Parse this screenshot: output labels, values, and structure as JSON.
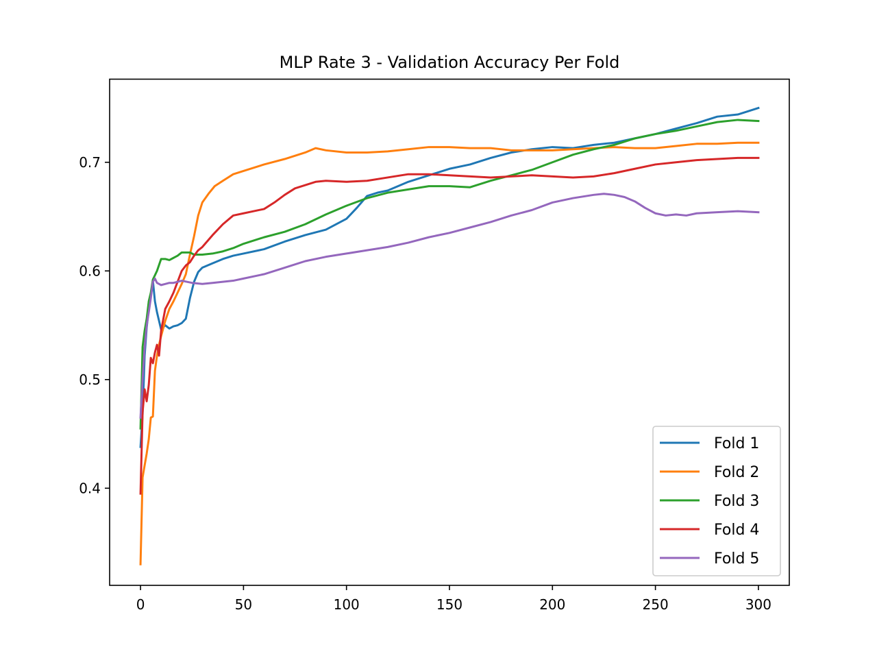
{
  "chart_data": {
    "type": "line",
    "title": "MLP Rate 3 - Validation Accuracy Per Fold",
    "xlabel": "",
    "ylabel": "",
    "xlim": [
      -15,
      315
    ],
    "ylim": [
      0.3106,
      0.7765
    ],
    "xticks": [
      0,
      50,
      100,
      150,
      200,
      250,
      300
    ],
    "yticks": [
      0.4,
      0.5,
      0.6,
      0.7
    ],
    "ytick_labels": [
      "0.4",
      "0.5",
      "0.6",
      "0.7"
    ],
    "grid": false,
    "legend_position": "bottom-right",
    "series": [
      {
        "name": "Fold 1",
        "color": "#1f77b4",
        "points": [
          [
            0,
            0.438
          ],
          [
            1,
            0.468
          ],
          [
            2,
            0.522
          ],
          [
            3,
            0.548
          ],
          [
            4,
            0.565
          ],
          [
            5,
            0.578
          ],
          [
            6,
            0.591
          ],
          [
            7,
            0.572
          ],
          [
            8,
            0.562
          ],
          [
            9,
            0.554
          ],
          [
            10,
            0.546
          ],
          [
            12,
            0.55
          ],
          [
            14,
            0.547
          ],
          [
            16,
            0.549
          ],
          [
            18,
            0.55
          ],
          [
            20,
            0.552
          ],
          [
            22,
            0.556
          ],
          [
            24,
            0.575
          ],
          [
            26,
            0.59
          ],
          [
            28,
            0.599
          ],
          [
            30,
            0.603
          ],
          [
            35,
            0.607
          ],
          [
            40,
            0.611
          ],
          [
            45,
            0.614
          ],
          [
            50,
            0.616
          ],
          [
            60,
            0.62
          ],
          [
            70,
            0.627
          ],
          [
            80,
            0.633
          ],
          [
            90,
            0.638
          ],
          [
            100,
            0.648
          ],
          [
            105,
            0.658
          ],
          [
            110,
            0.669
          ],
          [
            115,
            0.672
          ],
          [
            120,
            0.674
          ],
          [
            130,
            0.682
          ],
          [
            140,
            0.688
          ],
          [
            150,
            0.694
          ],
          [
            160,
            0.698
          ],
          [
            170,
            0.704
          ],
          [
            180,
            0.709
          ],
          [
            190,
            0.712
          ],
          [
            200,
            0.714
          ],
          [
            210,
            0.713
          ],
          [
            220,
            0.716
          ],
          [
            230,
            0.718
          ],
          [
            240,
            0.722
          ],
          [
            250,
            0.726
          ],
          [
            260,
            0.731
          ],
          [
            270,
            0.736
          ],
          [
            280,
            0.742
          ],
          [
            290,
            0.744
          ],
          [
            295,
            0.747
          ],
          [
            300,
            0.75
          ]
        ]
      },
      {
        "name": "Fold 2",
        "color": "#ff7f0e",
        "points": [
          [
            0,
            0.33
          ],
          [
            1,
            0.41
          ],
          [
            2,
            0.421
          ],
          [
            3,
            0.432
          ],
          [
            4,
            0.445
          ],
          [
            5,
            0.465
          ],
          [
            6,
            0.466
          ],
          [
            7,
            0.508
          ],
          [
            8,
            0.522
          ],
          [
            9,
            0.532
          ],
          [
            10,
            0.54
          ],
          [
            12,
            0.554
          ],
          [
            14,
            0.565
          ],
          [
            16,
            0.572
          ],
          [
            18,
            0.58
          ],
          [
            20,
            0.588
          ],
          [
            22,
            0.597
          ],
          [
            24,
            0.615
          ],
          [
            26,
            0.632
          ],
          [
            28,
            0.651
          ],
          [
            30,
            0.663
          ],
          [
            33,
            0.671
          ],
          [
            36,
            0.678
          ],
          [
            40,
            0.683
          ],
          [
            45,
            0.689
          ],
          [
            50,
            0.692
          ],
          [
            60,
            0.698
          ],
          [
            70,
            0.703
          ],
          [
            80,
            0.709
          ],
          [
            85,
            0.713
          ],
          [
            90,
            0.711
          ],
          [
            100,
            0.709
          ],
          [
            110,
            0.709
          ],
          [
            120,
            0.71
          ],
          [
            130,
            0.712
          ],
          [
            140,
            0.714
          ],
          [
            150,
            0.714
          ],
          [
            160,
            0.713
          ],
          [
            170,
            0.713
          ],
          [
            180,
            0.711
          ],
          [
            190,
            0.711
          ],
          [
            200,
            0.711
          ],
          [
            210,
            0.712
          ],
          [
            220,
            0.713
          ],
          [
            230,
            0.714
          ],
          [
            240,
            0.713
          ],
          [
            250,
            0.713
          ],
          [
            260,
            0.715
          ],
          [
            270,
            0.717
          ],
          [
            280,
            0.717
          ],
          [
            290,
            0.718
          ],
          [
            300,
            0.718
          ]
        ]
      },
      {
        "name": "Fold 3",
        "color": "#2ca02c",
        "points": [
          [
            0,
            0.455
          ],
          [
            1,
            0.53
          ],
          [
            2,
            0.545
          ],
          [
            3,
            0.556
          ],
          [
            4,
            0.572
          ],
          [
            5,
            0.58
          ],
          [
            6,
            0.592
          ],
          [
            8,
            0.6
          ],
          [
            10,
            0.611
          ],
          [
            12,
            0.611
          ],
          [
            14,
            0.61
          ],
          [
            16,
            0.612
          ],
          [
            18,
            0.614
          ],
          [
            20,
            0.617
          ],
          [
            22,
            0.617
          ],
          [
            24,
            0.617
          ],
          [
            26,
            0.615
          ],
          [
            30,
            0.615
          ],
          [
            35,
            0.616
          ],
          [
            40,
            0.618
          ],
          [
            45,
            0.621
          ],
          [
            50,
            0.625
          ],
          [
            60,
            0.631
          ],
          [
            70,
            0.636
          ],
          [
            80,
            0.643
          ],
          [
            90,
            0.652
          ],
          [
            100,
            0.66
          ],
          [
            110,
            0.667
          ],
          [
            120,
            0.672
          ],
          [
            130,
            0.675
          ],
          [
            140,
            0.678
          ],
          [
            150,
            0.678
          ],
          [
            160,
            0.677
          ],
          [
            170,
            0.683
          ],
          [
            180,
            0.688
          ],
          [
            190,
            0.693
          ],
          [
            200,
            0.7
          ],
          [
            210,
            0.707
          ],
          [
            220,
            0.712
          ],
          [
            230,
            0.716
          ],
          [
            240,
            0.722
          ],
          [
            250,
            0.726
          ],
          [
            260,
            0.729
          ],
          [
            270,
            0.733
          ],
          [
            280,
            0.737
          ],
          [
            290,
            0.739
          ],
          [
            300,
            0.738
          ]
        ]
      },
      {
        "name": "Fold 4",
        "color": "#d62728",
        "points": [
          [
            0,
            0.395
          ],
          [
            1,
            0.47
          ],
          [
            2,
            0.491
          ],
          [
            3,
            0.48
          ],
          [
            4,
            0.495
          ],
          [
            5,
            0.52
          ],
          [
            6,
            0.515
          ],
          [
            7,
            0.525
          ],
          [
            8,
            0.532
          ],
          [
            9,
            0.522
          ],
          [
            10,
            0.545
          ],
          [
            12,
            0.565
          ],
          [
            14,
            0.572
          ],
          [
            16,
            0.58
          ],
          [
            18,
            0.59
          ],
          [
            20,
            0.6
          ],
          [
            22,
            0.605
          ],
          [
            24,
            0.608
          ],
          [
            26,
            0.614
          ],
          [
            28,
            0.619
          ],
          [
            30,
            0.622
          ],
          [
            35,
            0.633
          ],
          [
            40,
            0.643
          ],
          [
            45,
            0.651
          ],
          [
            50,
            0.653
          ],
          [
            55,
            0.655
          ],
          [
            60,
            0.657
          ],
          [
            65,
            0.663
          ],
          [
            70,
            0.67
          ],
          [
            75,
            0.676
          ],
          [
            80,
            0.679
          ],
          [
            85,
            0.682
          ],
          [
            90,
            0.683
          ],
          [
            100,
            0.682
          ],
          [
            110,
            0.683
          ],
          [
            120,
            0.686
          ],
          [
            130,
            0.689
          ],
          [
            140,
            0.689
          ],
          [
            150,
            0.688
          ],
          [
            160,
            0.687
          ],
          [
            170,
            0.686
          ],
          [
            180,
            0.687
          ],
          [
            190,
            0.688
          ],
          [
            200,
            0.687
          ],
          [
            210,
            0.686
          ],
          [
            220,
            0.687
          ],
          [
            230,
            0.69
          ],
          [
            240,
            0.694
          ],
          [
            250,
            0.698
          ],
          [
            260,
            0.7
          ],
          [
            270,
            0.702
          ],
          [
            280,
            0.703
          ],
          [
            290,
            0.704
          ],
          [
            300,
            0.704
          ]
        ]
      },
      {
        "name": "Fold 5",
        "color": "#9467bd",
        "points": [
          [
            0,
            0.465
          ],
          [
            1,
            0.5
          ],
          [
            2,
            0.53
          ],
          [
            3,
            0.55
          ],
          [
            4,
            0.562
          ],
          [
            5,
            0.575
          ],
          [
            6,
            0.59
          ],
          [
            7,
            0.593
          ],
          [
            8,
            0.589
          ],
          [
            10,
            0.587
          ],
          [
            12,
            0.588
          ],
          [
            14,
            0.589
          ],
          [
            16,
            0.589
          ],
          [
            18,
            0.59
          ],
          [
            20,
            0.591
          ],
          [
            25,
            0.589
          ],
          [
            30,
            0.588
          ],
          [
            35,
            0.589
          ],
          [
            40,
            0.59
          ],
          [
            45,
            0.591
          ],
          [
            50,
            0.593
          ],
          [
            60,
            0.597
          ],
          [
            70,
            0.603
          ],
          [
            80,
            0.609
          ],
          [
            90,
            0.613
          ],
          [
            100,
            0.616
          ],
          [
            110,
            0.619
          ],
          [
            120,
            0.622
          ],
          [
            130,
            0.626
          ],
          [
            140,
            0.631
          ],
          [
            150,
            0.635
          ],
          [
            160,
            0.64
          ],
          [
            170,
            0.645
          ],
          [
            180,
            0.651
          ],
          [
            190,
            0.656
          ],
          [
            200,
            0.663
          ],
          [
            210,
            0.667
          ],
          [
            220,
            0.67
          ],
          [
            225,
            0.671
          ],
          [
            230,
            0.67
          ],
          [
            235,
            0.668
          ],
          [
            240,
            0.664
          ],
          [
            245,
            0.658
          ],
          [
            250,
            0.653
          ],
          [
            255,
            0.651
          ],
          [
            260,
            0.652
          ],
          [
            265,
            0.651
          ],
          [
            270,
            0.653
          ],
          [
            280,
            0.654
          ],
          [
            290,
            0.655
          ],
          [
            300,
            0.654
          ]
        ]
      }
    ]
  }
}
